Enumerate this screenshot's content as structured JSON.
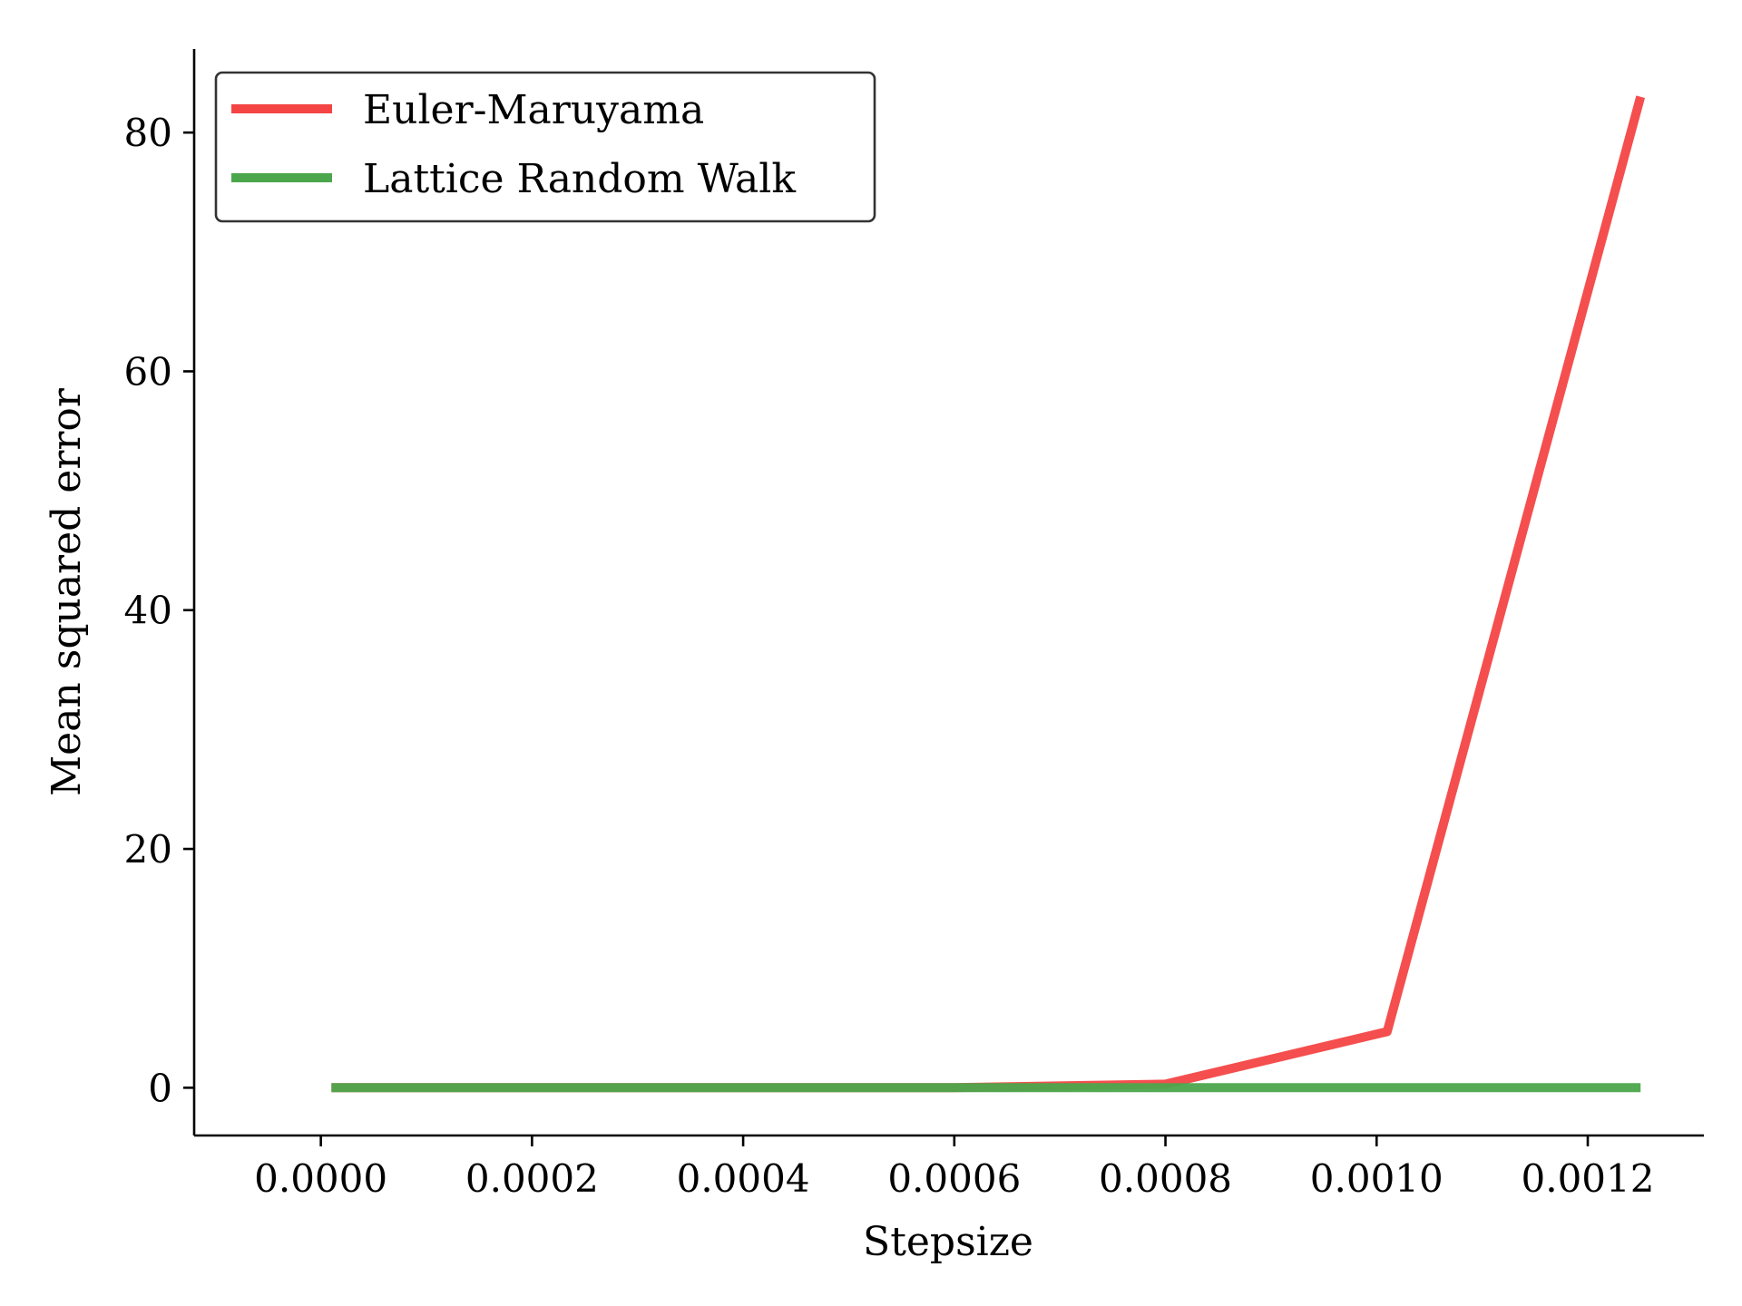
{
  "chart_data": {
    "type": "line",
    "xlabel": "Stepsize",
    "ylabel": "Mean squared error",
    "xlim": [
      -0.00012,
      0.00131
    ],
    "ylim": [
      -4,
      87
    ],
    "xticks": [
      0.0,
      0.0002,
      0.0004,
      0.0006,
      0.0008,
      0.001,
      0.0012
    ],
    "xtick_labels": [
      "0.0000",
      "0.0002",
      "0.0004",
      "0.0006",
      "0.0008",
      "0.0010",
      "0.0012"
    ],
    "yticks": [
      0,
      20,
      40,
      60,
      80
    ],
    "ytick_labels": [
      "0",
      "20",
      "40",
      "60",
      "80"
    ],
    "grid": false,
    "legend_position": "top-left",
    "series": [
      {
        "name": "Euler-Maruyama",
        "color": "#f44444",
        "x": [
          1e-05,
          0.0002,
          0.0004,
          0.0006,
          0.0008,
          0.00101,
          0.00125
        ],
        "y": [
          0.0,
          0.0,
          0.0,
          0.0,
          0.3,
          4.7,
          83.0
        ]
      },
      {
        "name": "Lattice Random Walk",
        "color": "#4ca64c",
        "x": [
          1e-05,
          0.0002,
          0.0004,
          0.0006,
          0.0008,
          0.00101,
          0.00125
        ],
        "y": [
          0.0,
          0.0,
          0.0,
          0.0,
          0.0,
          0.0,
          0.0
        ]
      }
    ]
  }
}
